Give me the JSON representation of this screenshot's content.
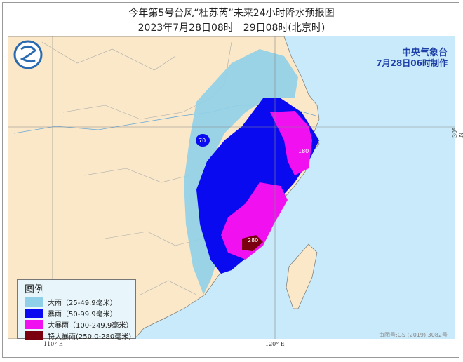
{
  "title": "今年第5号台风“杜苏芮”未来24小时降水预报图",
  "subtitle": "2023年7月28日08时－29日08时(北京时)",
  "agency": "中央气象台",
  "issued": "7月28日06时制作",
  "legend": {
    "title": "图例",
    "items": [
      {
        "label": "大雨（25-49.9毫米）",
        "color": "#8fd0e8"
      },
      {
        "label": "暴雨（50-99.9毫米）",
        "color": "#0a0af0"
      },
      {
        "label": "大暴雨（100-249.9毫米）",
        "color": "#f010f0"
      },
      {
        "label": "特大暴雨(250.0-280毫米)",
        "color": "#7a0010"
      }
    ]
  },
  "map_labels": {
    "v70": "70",
    "v180": "180",
    "v280": "280"
  },
  "axes": {
    "lon110": "110° E",
    "lon120": "120° E",
    "lat30": "30° N"
  },
  "approval": "审图号:GS (2019) 3082号",
  "colors": {
    "land": "#fae8c8",
    "sea": "#c8eafa"
  }
}
